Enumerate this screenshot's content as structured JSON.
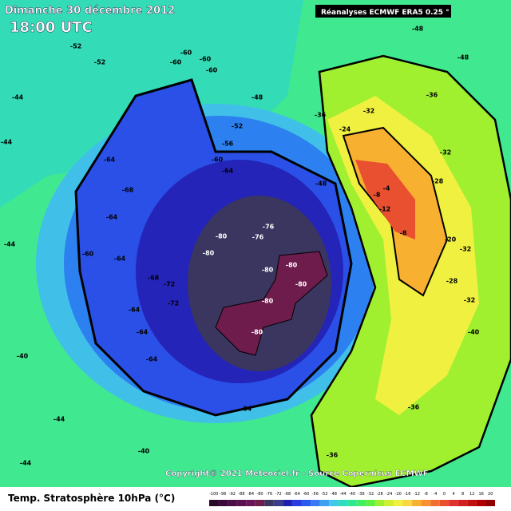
{
  "header": {
    "date": "Dimanche 30 décembre 2012",
    "time": "18:00 UTC",
    "source": "Réanalyses ECMWF ERA5 0.25 °"
  },
  "copyright": "Copyright© 2021 Meteociel.fr - Source Copernicus ECMWF",
  "footer": {
    "title": "Temp. Stratosphère 10hPa (°C)"
  },
  "colorbar": {
    "ticks": [
      -100,
      -96,
      -92,
      -88,
      -84,
      -80,
      -76,
      -72,
      -68,
      -64,
      -60,
      -56,
      -52,
      -48,
      -44,
      -40,
      -36,
      -32,
      -28,
      -24,
      -20,
      -16,
      -12,
      -8,
      -4,
      0,
      4,
      8,
      12,
      16,
      20
    ],
    "colors": [
      "#2a0a2a",
      "#3a0a3a",
      "#4a0d45",
      "#5a1050",
      "#6a1458",
      "#6e1c4c",
      "#3a3660",
      "#3c3c8a",
      "#2020b0",
      "#2a3ce0",
      "#2c5aee",
      "#3a7af0",
      "#40a0f0",
      "#40c8e8",
      "#30dcc0",
      "#30e890",
      "#40f060",
      "#60f040",
      "#a0f030",
      "#d0f030",
      "#f0f040",
      "#f8d840",
      "#f8b030",
      "#f89030",
      "#f07030",
      "#e85030",
      "#e03030",
      "#d02020",
      "#c01010",
      "#b00000",
      "#900000"
    ]
  },
  "map": {
    "contour_labels": [
      "-52",
      "-52",
      "-60",
      "-60",
      "-60",
      "-60",
      "-48",
      "-44",
      "-52",
      "-56",
      "-60",
      "-64",
      "-64",
      "-68",
      "-64",
      "-60",
      "-64",
      "-68",
      "-72",
      "-72",
      "-64",
      "-64",
      "-64",
      "-76",
      "-76",
      "-80",
      "-80",
      "-80",
      "-80",
      "-80",
      "-80",
      "-80",
      "-64",
      "-48",
      "-36",
      "-24",
      "-32",
      "-36",
      "-32",
      "-28",
      "-8",
      "-4",
      "-12",
      "-8",
      "-32",
      "-28",
      "-32",
      "-36",
      "-40",
      "-44",
      "-44",
      "-44",
      "-40",
      "-44",
      "-48",
      "-48",
      "-48",
      "-36",
      "-40",
      "-20"
    ]
  }
}
